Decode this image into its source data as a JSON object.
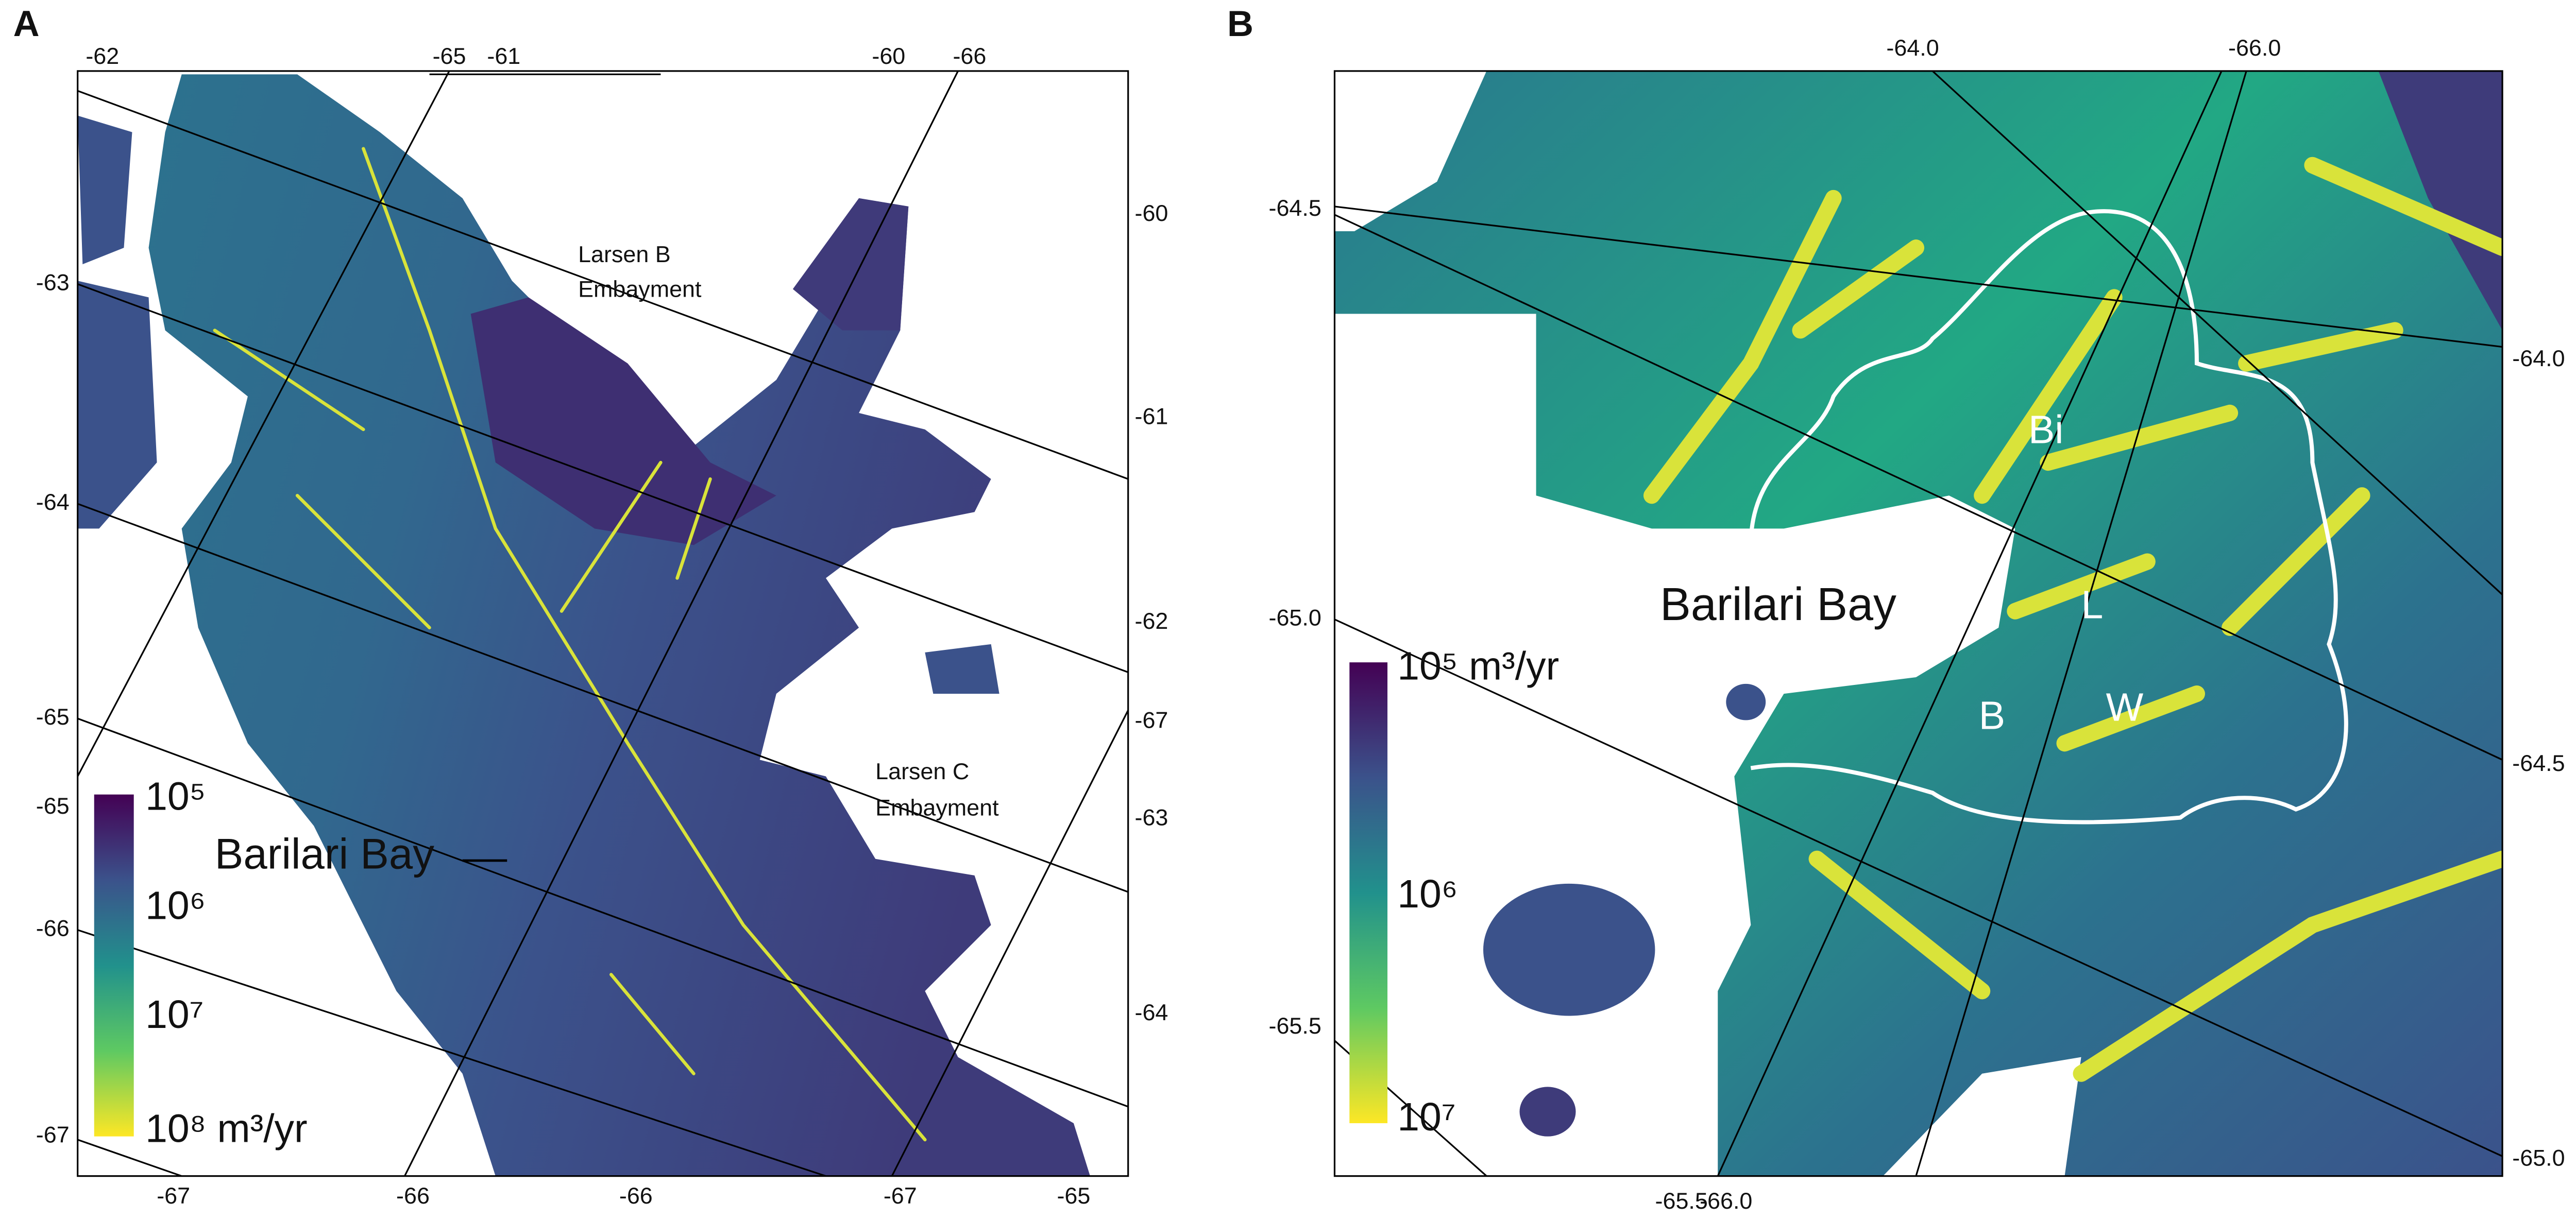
{
  "panel_a": {
    "label": "A",
    "top_labels": [
      "-62",
      "-65",
      "-61",
      "-60",
      "-66"
    ],
    "left_labels": [
      "-63",
      "-64",
      "-65",
      "-65",
      "-66",
      "-67"
    ],
    "right_labels": [
      "-60",
      "-61",
      "-62",
      "-67",
      "-63",
      "-64"
    ],
    "bottom_labels": [
      "-67",
      "-66",
      "-66",
      "-67",
      "-65"
    ],
    "annotations": [
      "Larsen B",
      "Embayment",
      "Larsen C",
      "Embayment",
      "Barilari Bay"
    ],
    "colorbar": [
      "10⁵",
      "10⁶",
      "10⁷",
      "10⁸ m³/yr"
    ]
  },
  "panel_b": {
    "label": "B",
    "top_labels": [
      "-64.0",
      "-66.0"
    ],
    "left_labels": [
      "-64.5",
      "-65.0",
      "-65.5"
    ],
    "right_labels": [
      "-64.0",
      "-64.5",
      "-65.0"
    ],
    "bottom_labels": [
      "-65.5",
      "-66.0"
    ],
    "annotations": [
      "Barilari Bay",
      "Bi",
      "L",
      "B",
      "W"
    ],
    "colorbar": [
      "10⁵ m³/yr",
      "10⁶",
      "10⁷"
    ]
  }
}
